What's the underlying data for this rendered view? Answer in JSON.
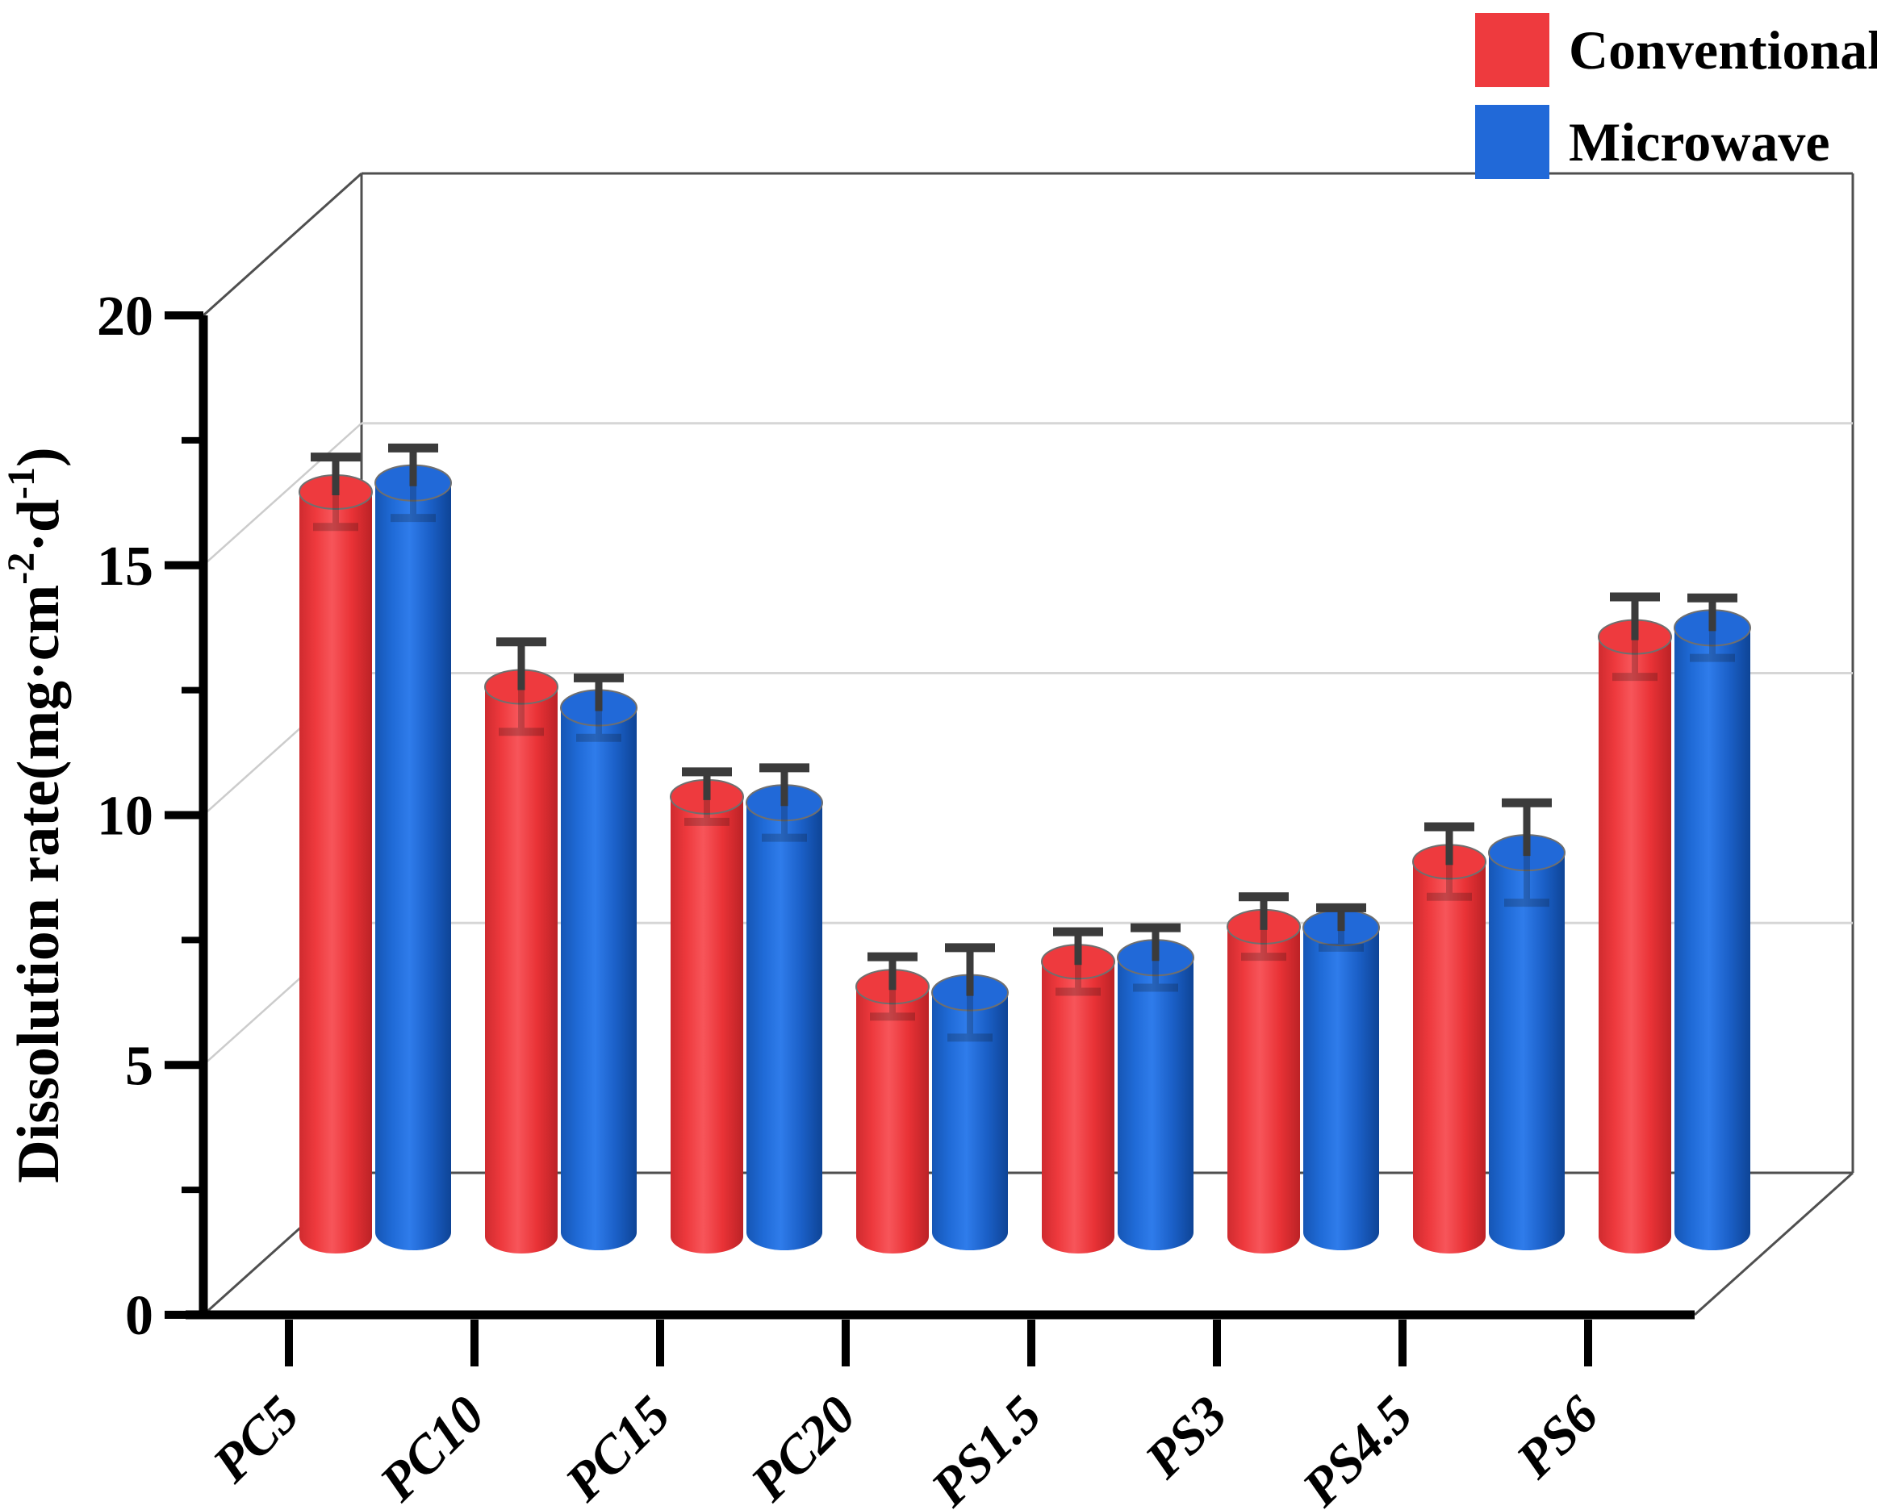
{
  "legend": {
    "items": [
      {
        "label": "Conventional",
        "color": "#ee3a3e"
      },
      {
        "label": "Microwave",
        "color": "#2169d8"
      }
    ]
  },
  "chart_data": {
    "type": "bar",
    "subtype": "3d-cylinder-column",
    "title": "",
    "xlabel": "",
    "ylabel": "Dissolution rate(mg·cm-2·d-1)",
    "ylabel_parts": {
      "prefix": "Dissolution rate(mg·cm",
      "sup1": "-2",
      "mid": "·d",
      "sup2": "-1",
      "suffix": ")"
    },
    "categories": [
      "PC5",
      "PC10",
      "PC15",
      "PC20",
      "PS1.5",
      "PS3",
      "PS4.5",
      "PS6"
    ],
    "series": [
      {
        "name": "Conventional",
        "color": "#ee3a3e",
        "values": [
          14.9,
          11.0,
          8.8,
          5.0,
          5.5,
          6.2,
          7.5,
          12.0
        ],
        "errors": [
          0.7,
          0.9,
          0.5,
          0.6,
          0.6,
          0.6,
          0.7,
          0.8
        ]
      },
      {
        "name": "Microwave",
        "color": "#2169d8",
        "values": [
          15.0,
          10.5,
          8.6,
          4.8,
          5.5,
          6.1,
          7.6,
          12.1
        ],
        "errors": [
          0.7,
          0.6,
          0.7,
          0.9,
          0.6,
          0.4,
          1.0,
          0.6
        ]
      }
    ],
    "ylim": [
      0,
      20
    ],
    "y_tick_values": [
      0,
      5,
      10,
      15,
      20
    ],
    "y_tick_labels": [
      "0",
      "5",
      "10",
      "15",
      "20"
    ],
    "y_minor_tick_values": [
      2.5,
      7.5,
      12.5,
      17.5
    ],
    "grid_values": [
      5,
      10,
      15
    ],
    "grid": true,
    "legend_position": "top-right",
    "error_bar_color": "#3b3b3b",
    "axis_color": "#000000"
  }
}
